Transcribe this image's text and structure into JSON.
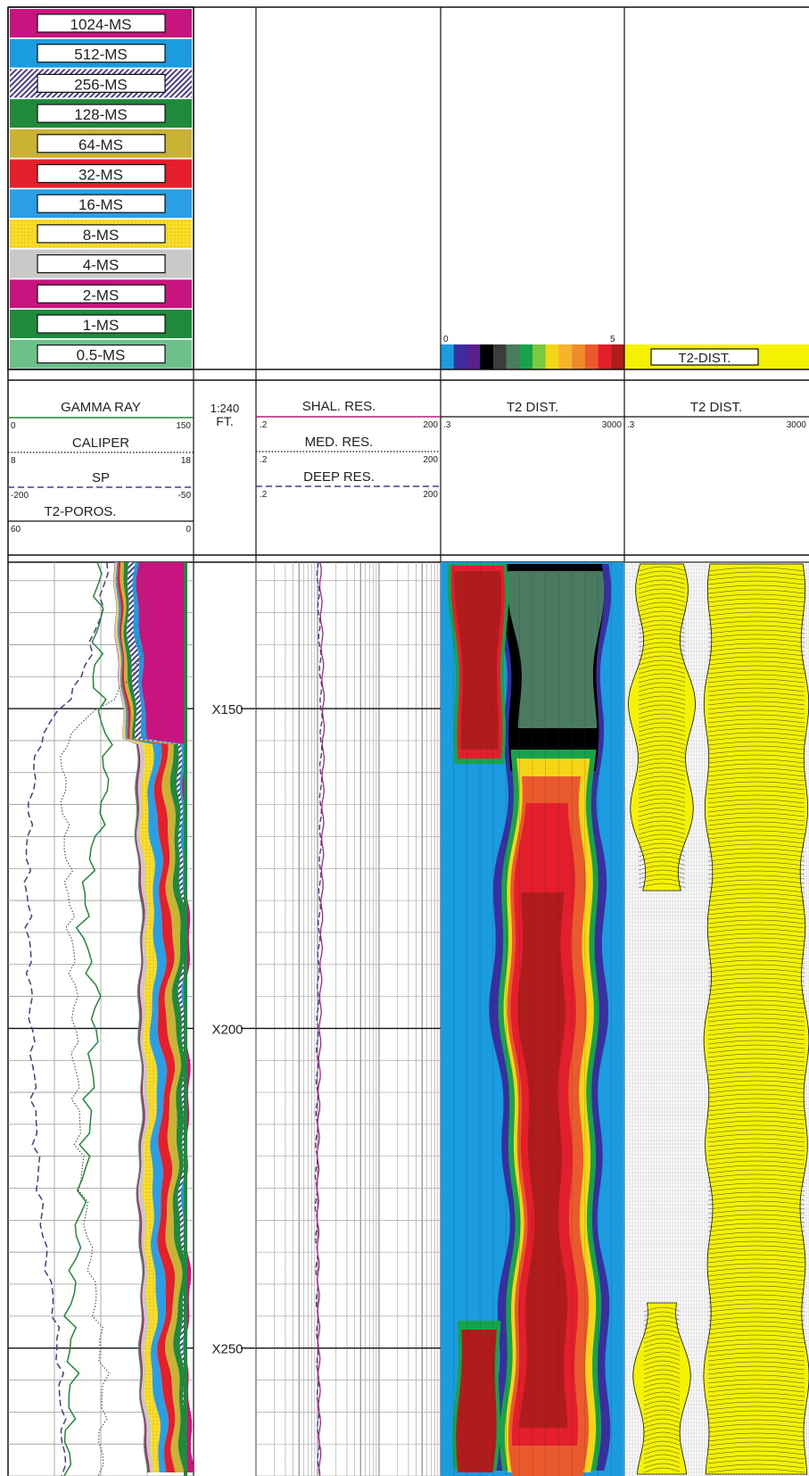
{
  "legend": {
    "items": [
      {
        "label": "1024-MS",
        "color": "#c8147e",
        "pattern": "solid"
      },
      {
        "label": "512-MS",
        "color": "#1b9be0",
        "pattern": "solid"
      },
      {
        "label": "256-MS",
        "color": "#4a3a8f",
        "pattern": "hatch"
      },
      {
        "label": "128-MS",
        "color": "#1f8a3c",
        "pattern": "solid"
      },
      {
        "label": "64-MS",
        "color": "#c9b234",
        "pattern": "solid"
      },
      {
        "label": "32-MS",
        "color": "#e41e2b",
        "pattern": "solid"
      },
      {
        "label": "16-MS",
        "color": "#2a9fe6",
        "pattern": "solid"
      },
      {
        "label": "8-MS",
        "color": "#f5d516",
        "pattern": "dots"
      },
      {
        "label": "4-MS",
        "color": "#c9c9c9",
        "pattern": "solid"
      },
      {
        "label": "2-MS",
        "color": "#c8147e",
        "pattern": "solid"
      },
      {
        "label": "1-MS",
        "color": "#1f8a3c",
        "pattern": "solid"
      },
      {
        "label": "0.5-MS",
        "color": "#6cc08a",
        "pattern": "solid"
      }
    ],
    "colorbar": {
      "min": "0",
      "max": "5",
      "colors": [
        "#1b9be0",
        "#3a2fa0",
        "#5a1f8f",
        "#000000",
        "#3c3c3c",
        "#4a7a60",
        "#17a34a",
        "#7ac943",
        "#f5d516",
        "#f7b32b",
        "#f08b2c",
        "#ea5a2c",
        "#e41e2b",
        "#b01b1b"
      ]
    },
    "t2_dist_box": "T2-DIST."
  },
  "headers": {
    "gamma_ray": {
      "title": "GAMMA RAY",
      "min": "0",
      "max": "150",
      "color": "#1f8a3c"
    },
    "caliper": {
      "title": "CALIPER",
      "min": "8",
      "max": "18"
    },
    "sp": {
      "title": "SP",
      "min": "-200",
      "max": "-50",
      "color": "#4a3a8f"
    },
    "t2_poros": {
      "title": "T2-POROS.",
      "min": "60",
      "max": "0"
    },
    "scale": {
      "ratio": "1:240",
      "unit": "FT."
    },
    "shal_res": {
      "title": "SHAL. RES.",
      "min": ".2",
      "max": "200",
      "color": "#b0207e"
    },
    "med_res": {
      "title": "MED. RES.",
      "min": ".2",
      "max": "200"
    },
    "deep_res": {
      "title": "DEEP RES.",
      "min": ".2",
      "max": "200",
      "color": "#4a3a8f"
    },
    "t2_dist_1": {
      "title": "T2 DIST.",
      "min": ".3",
      "max": "3000"
    },
    "t2_dist_2": {
      "title": "T2 DIST.",
      "min": ".3",
      "max": "3000"
    }
  },
  "depth": {
    "labels": [
      "X150",
      "X200",
      "X250"
    ]
  },
  "chart_data": {
    "type": "well-log",
    "depth_unit": "FT.",
    "depth_range": [
      127,
      270
    ],
    "tracks": [
      {
        "name": "GAMMA RAY",
        "range": [
          0,
          150
        ],
        "depth": [
          127,
          135,
          145,
          155,
          165,
          175,
          185,
          195,
          205,
          215,
          225,
          235,
          245,
          255,
          265,
          270
        ],
        "values": [
          72,
          74,
          70,
          80,
          78,
          65,
          60,
          72,
          68,
          65,
          60,
          55,
          50,
          52,
          48,
          48
        ]
      },
      {
        "name": "CALIPER",
        "range": [
          8,
          18
        ],
        "depth": [
          127,
          135,
          145,
          155,
          165,
          175,
          185,
          195,
          205,
          215,
          225,
          235,
          245,
          255,
          265,
          270
        ],
        "values": [
          15,
          15.5,
          14.8,
          11,
          11,
          11.2,
          11.4,
          11.6,
          11.6,
          11.8,
          12,
          12.4,
          12.8,
          13.2,
          13,
          13
        ]
      },
      {
        "name": "SP",
        "range": [
          -200,
          -50
        ],
        "depth": [
          127,
          135,
          145,
          155,
          165,
          175,
          185,
          195,
          205,
          215,
          225,
          235,
          245,
          255,
          265,
          270
        ],
        "values": [
          -120,
          -125,
          -140,
          -175,
          -182,
          -185,
          -183,
          -182,
          -180,
          -178,
          -175,
          -170,
          -162,
          -158,
          -155,
          -155
        ]
      },
      {
        "name": "T2-POROS.",
        "range": [
          60,
          0
        ],
        "depth": [
          127,
          135,
          145,
          155,
          165,
          175,
          185,
          195,
          205,
          215,
          225,
          235,
          245,
          255,
          265,
          270
        ],
        "values": [
          32,
          31,
          28,
          25,
          24,
          24,
          23,
          23,
          22,
          21,
          20,
          18,
          16,
          14,
          14,
          14
        ]
      },
      {
        "name": "SHAL. RES.",
        "range": [
          0.2,
          200
        ],
        "scale": "log",
        "depth": [
          127,
          150,
          175,
          200,
          225,
          250,
          270
        ],
        "values": [
          2.2,
          2.5,
          2.4,
          2.2,
          2.0,
          2.1,
          2.2
        ]
      },
      {
        "name": "DEEP RES.",
        "range": [
          0.2,
          200
        ],
        "scale": "log",
        "depth": [
          127,
          150,
          175,
          200,
          225,
          250,
          270
        ],
        "values": [
          2.0,
          2.3,
          2.2,
          2.0,
          1.9,
          2.0,
          2.1
        ]
      }
    ]
  }
}
